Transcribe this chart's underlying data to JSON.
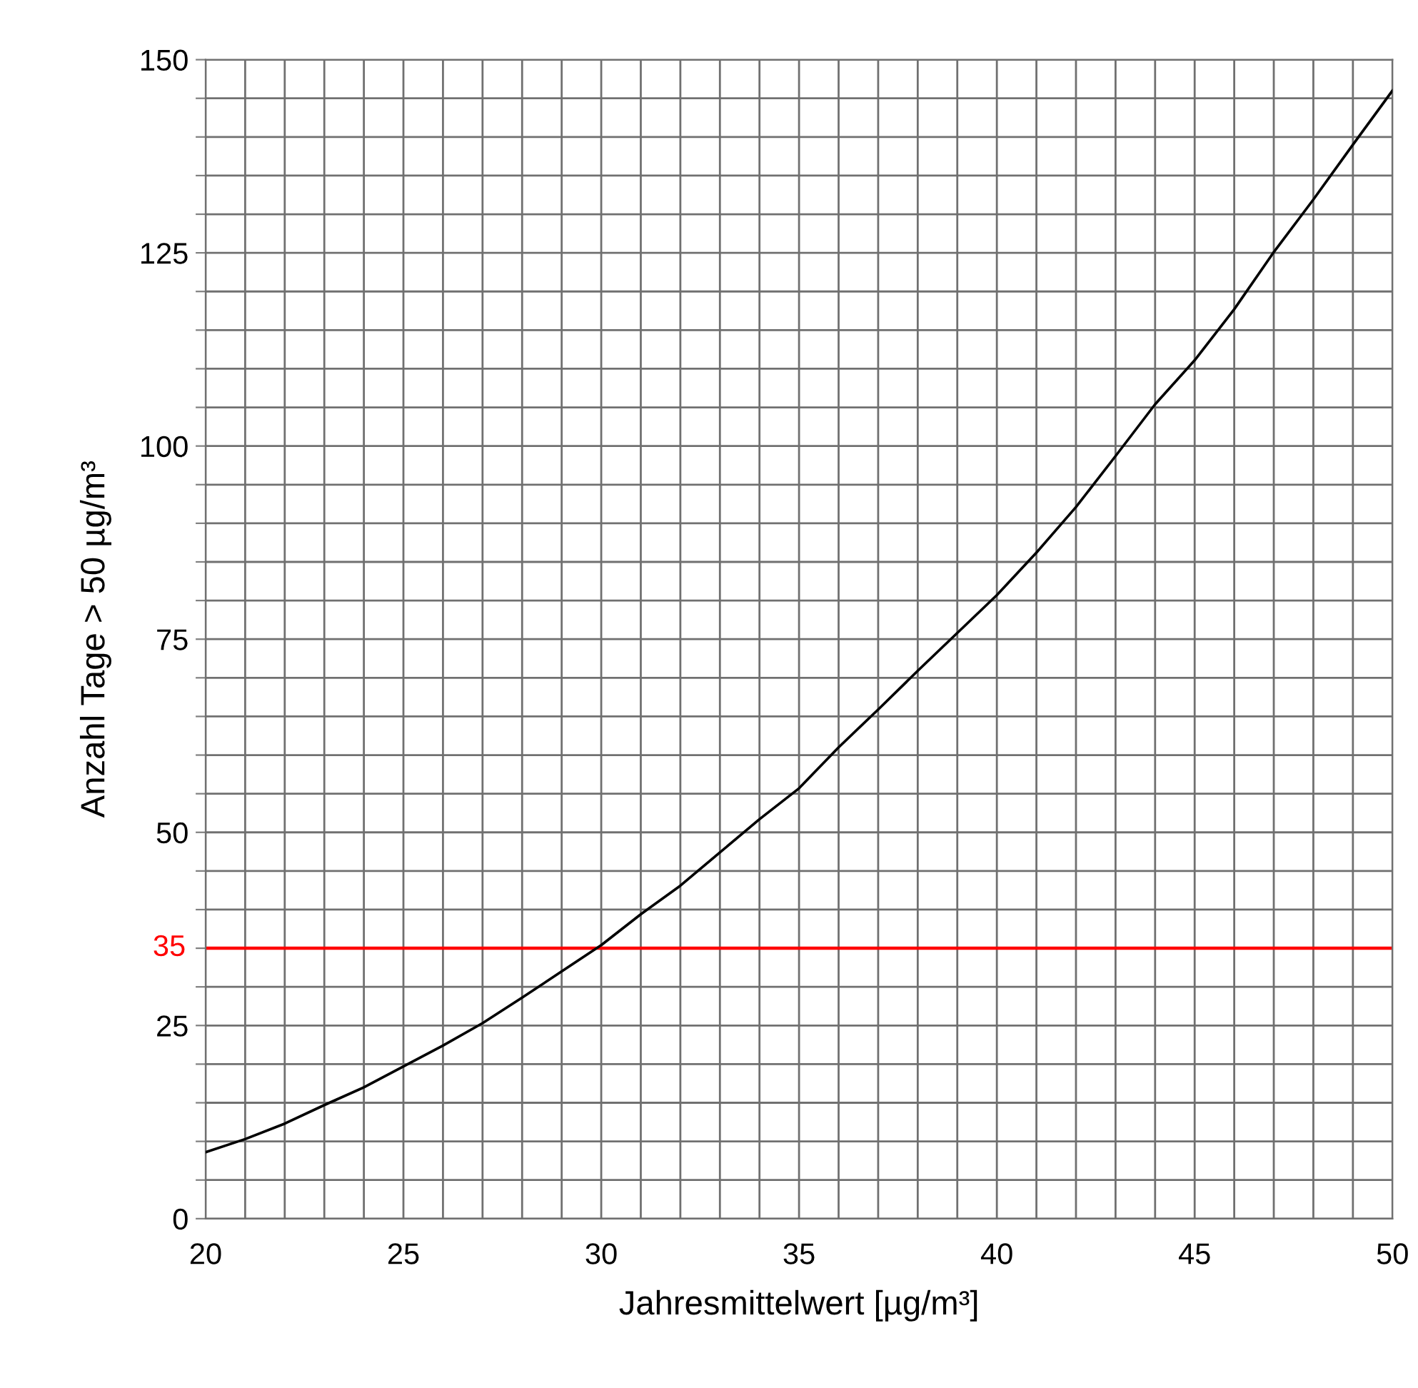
{
  "chart_data": {
    "type": "line",
    "xlabel": "Jahresmittelwert [µg/m³]",
    "ylabel": "Anzahl Tage > 50 µg/m³",
    "x": [
      20,
      21,
      22,
      23,
      24,
      25,
      26,
      27,
      28,
      29,
      30,
      31,
      32,
      33,
      34,
      35,
      36,
      37,
      38,
      39,
      40,
      41,
      42,
      43,
      44,
      45,
      46,
      47,
      48,
      49,
      50
    ],
    "series": [
      {
        "color": "#000000",
        "values": [
          8.6,
          10.3,
          12.3,
          14.7,
          17.0,
          19.7,
          22.4,
          25.3,
          28.6,
          32.0,
          35.4,
          39.4,
          43.1,
          47.4,
          51.7,
          55.7,
          61.0,
          65.9,
          70.9,
          75.8,
          80.7,
          86.2,
          92.1,
          98.7,
          105.4,
          111.1,
          117.7,
          125.1,
          131.9,
          139.0,
          146.0
        ]
      }
    ],
    "xlim": [
      20,
      50
    ],
    "ylim": [
      0,
      150
    ],
    "xticks": [
      20,
      {
        "value": 21,
        "label": null
      },
      {
        "value": 22,
        "label": null
      },
      {
        "value": 23,
        "label": null
      },
      {
        "value": 24,
        "label": null
      },
      25,
      {
        "value": 26,
        "label": null
      },
      {
        "value": 27,
        "label": null
      },
      {
        "value": 28,
        "label": null
      },
      {
        "value": 29,
        "label": null
      },
      30,
      {
        "value": 31,
        "label": null
      },
      {
        "value": 32,
        "label": null
      },
      {
        "value": 33,
        "label": null
      },
      {
        "value": 34,
        "label": null
      },
      35,
      {
        "value": 36,
        "label": null
      },
      {
        "value": 37,
        "label": null
      },
      {
        "value": 38,
        "label": null
      },
      {
        "value": 39,
        "label": null
      },
      40,
      {
        "value": 41,
        "label": null
      },
      {
        "value": 42,
        "label": null
      },
      {
        "value": 43,
        "label": null
      },
      {
        "value": 44,
        "label": null
      },
      45,
      {
        "value": 46,
        "label": null
      },
      {
        "value": 47,
        "label": null
      },
      {
        "value": 48,
        "label": null
      },
      {
        "value": 49,
        "label": null
      },
      50
    ],
    "yticks": [
      0,
      {
        "value": 5,
        "label": null
      },
      {
        "value": 10,
        "label": null
      },
      {
        "value": 15,
        "label": null
      },
      {
        "value": 20,
        "label": null
      },
      25,
      {
        "value": 30,
        "label": null
      },
      {
        "value": 35,
        "label": null
      },
      {
        "value": 40,
        "label": null
      },
      {
        "value": 45,
        "label": null
      },
      50,
      {
        "value": 55,
        "label": null
      },
      {
        "value": 60,
        "label": null
      },
      {
        "value": 65,
        "label": null
      },
      {
        "value": 70,
        "label": null
      },
      75,
      {
        "value": 80,
        "label": null
      },
      {
        "value": 85,
        "label": null
      },
      {
        "value": 90,
        "label": null
      },
      {
        "value": 95,
        "label": null
      },
      100,
      {
        "value": 105,
        "label": null
      },
      {
        "value": 110,
        "label": null
      },
      {
        "value": 115,
        "label": null
      },
      {
        "value": 120,
        "label": null
      },
      125,
      {
        "value": 130,
        "label": null
      },
      {
        "value": 135,
        "label": null
      },
      {
        "value": 140,
        "label": null
      },
      {
        "value": 145,
        "label": null
      },
      150
    ],
    "ref_lines": [
      {
        "axis": "y",
        "value": 35,
        "label": "35",
        "color": "#ff0000"
      }
    ],
    "grid": true,
    "legend": false
  }
}
